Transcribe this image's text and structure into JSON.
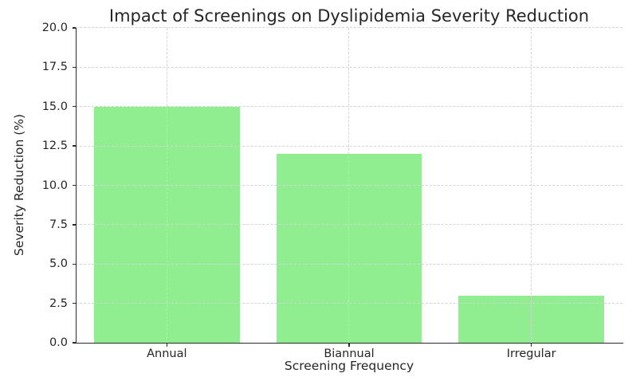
{
  "chart_data": {
    "type": "bar",
    "title": "Impact of Screenings on Dyslipidemia Severity Reduction",
    "xlabel": "Screening Frequency",
    "ylabel": "Severity Reduction (%)",
    "categories": [
      "Annual",
      "Biannual",
      "Irregular"
    ],
    "values": [
      15,
      12,
      3
    ],
    "ylim": [
      0,
      20
    ],
    "ytick_step": 2.5,
    "ytick_labels": [
      "0.0",
      "2.5",
      "5.0",
      "7.5",
      "10.0",
      "12.5",
      "15.0",
      "17.5",
      "20.0"
    ],
    "grid": true,
    "grid_style": "dashed",
    "legend": "none",
    "bar_color": "#90EE90",
    "spine_color": "#2b2b2b",
    "grid_color": "#d4d4d4",
    "text_color": "#262626",
    "background_color": "#ffffff",
    "bar_width_fraction": 0.8
  }
}
